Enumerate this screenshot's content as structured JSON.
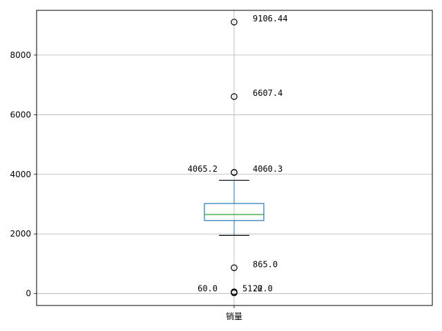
{
  "chart_data": {
    "type": "box",
    "title": "",
    "xlabel": "",
    "ylabel": "",
    "categories": [
      "销量"
    ],
    "ylim": [
      -400,
      9500
    ],
    "yticks": [
      0,
      2000,
      4000,
      6000,
      8000
    ],
    "ytick_labels": [
      "0",
      "2000",
      "4000",
      "6000",
      "8000"
    ],
    "grid": true,
    "box": {
      "whisker_low": 1950,
      "q1": 2450,
      "median": 2650,
      "q3": 3020,
      "whisker_high": 3800
    },
    "outliers": [
      9106.44,
      6607.4,
      4065.2,
      4060.3,
      865.0,
      60.0,
      51.0,
      22.0
    ],
    "annotations": [
      {
        "text": "9106.44",
        "value": 9106.44,
        "side": "right"
      },
      {
        "text": "6607.4",
        "value": 6607.4,
        "side": "right"
      },
      {
        "text": "4065.2",
        "value": 4065.2,
        "side": "left"
      },
      {
        "text": "4060.3",
        "value": 4060.3,
        "side": "right"
      },
      {
        "text": "865.0",
        "value": 865.0,
        "side": "right"
      },
      {
        "text": "60.0",
        "value": 60.0,
        "side": "left"
      },
      {
        "text": "51.0",
        "value": 51.0,
        "side": "center"
      },
      {
        "text": "22.0",
        "value": 22.0,
        "side": "right"
      }
    ],
    "colors": {
      "box": "#1f77b4",
      "median": "#2ca02c",
      "whisker": "#1f77b4",
      "cap": "#000000",
      "outlier_edge": "#000000",
      "grid": "#b0b0b0",
      "axis": "#000000"
    }
  }
}
